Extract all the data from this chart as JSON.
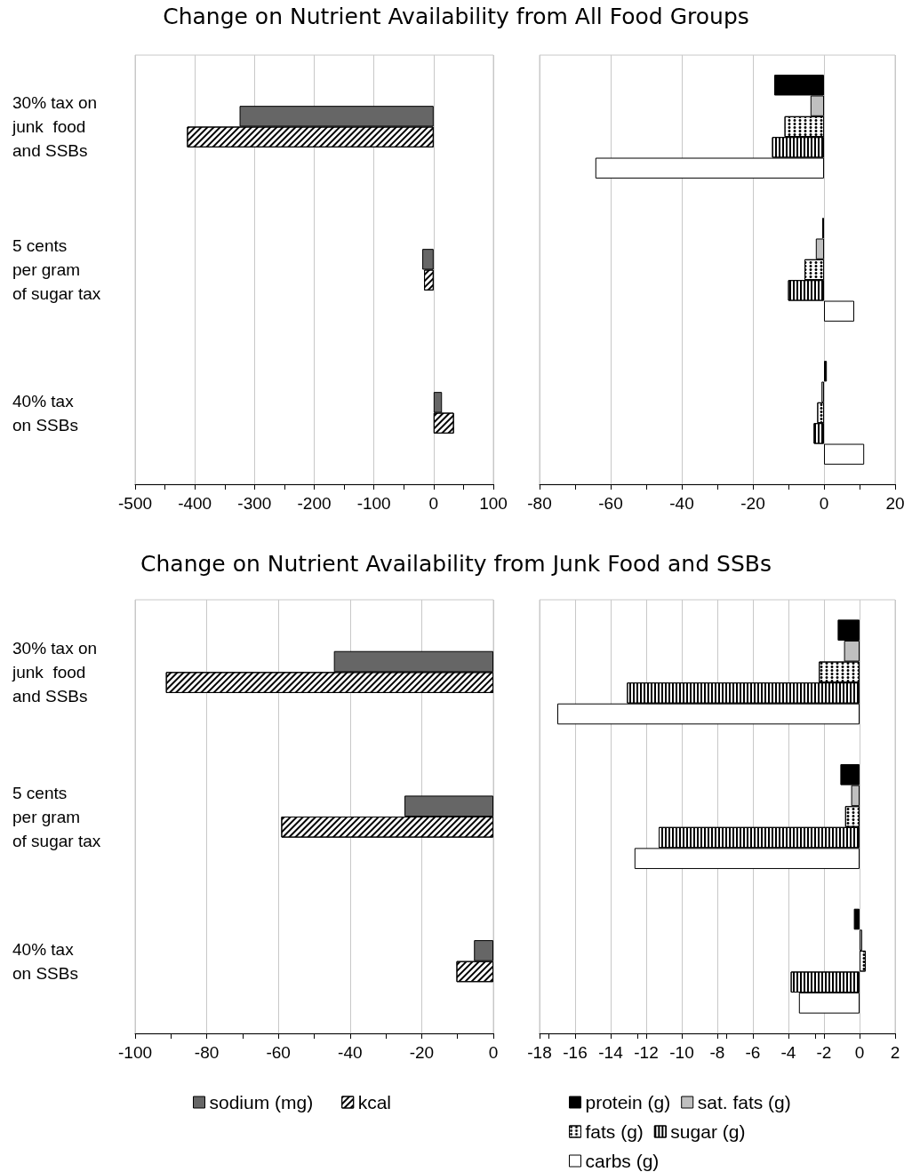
{
  "chart_data": [
    {
      "type": "bar",
      "orientation": "horizontal",
      "title": "Change on Nutrient Availability from All Food Groups",
      "categories": [
        "30% tax on\njunk  food\nand SSBs",
        "5 cents\nper gram\nof sugar tax",
        "40% tax\non SSBs"
      ],
      "series": [
        {
          "color": "#666666",
          "values": [
            -325,
            -19,
            14
          ]
        },
        {
          "color": "#ffffff",
          "values": [
            -413,
            -16,
            34
          ]
        }
      ],
      "xlim": [
        -500,
        100
      ],
      "xticks": [
        -500,
        -400,
        -300,
        -200,
        -100,
        0,
        100
      ],
      "grid": "x",
      "legend": false
    },
    {
      "type": "bar",
      "orientation": "horizontal",
      "categories": [
        null,
        null,
        null
      ],
      "series": [
        {
          "color": "#000000",
          "values": [
            -14,
            -0.5,
            0.8
          ]
        },
        {
          "color": "#bfbfbf",
          "values": [
            -3.8,
            -2.3,
            -0.7
          ]
        },
        {
          "color": "#ffffff",
          "values": [
            -11.1,
            -5.5,
            -1.9
          ]
        },
        {
          "color": "#ffffff",
          "values": [
            -14.6,
            -10.1,
            -2.9
          ]
        },
        {
          "color": "#ffffff",
          "values": [
            -64.3,
            8.5,
            11.3
          ]
        }
      ],
      "xlim": [
        -80,
        20
      ],
      "xticks": [
        -80,
        -60,
        -40,
        -20,
        0,
        20
      ],
      "grid": "x",
      "legend": false
    },
    {
      "type": "bar",
      "orientation": "horizontal",
      "title": "Change on Nutrient Availability from Junk Food and SSBs",
      "categories": [
        "30% tax on\njunk  food\nand SSBs",
        "5 cents\nper gram\nof sugar tax",
        "40% tax\non SSBs"
      ],
      "series": [
        {
          "name": "sodium (mg)",
          "color": "#666666",
          "values": [
            -44.5,
            -24.8,
            -5.4
          ]
        },
        {
          "name": "kcal",
          "color": "#ffffff",
          "values": [
            -91.4,
            -59.2,
            -10.3
          ]
        }
      ],
      "xlim": [
        -100,
        0
      ],
      "xticks": [
        -100,
        -80,
        -60,
        -40,
        -20,
        0
      ],
      "grid": "x",
      "legend": "bottom"
    },
    {
      "type": "bar",
      "orientation": "horizontal",
      "categories": [
        null,
        null,
        null
      ],
      "series": [
        {
          "name": "protein (g)",
          "color": "#000000",
          "values": [
            -1.23,
            -1.08,
            -0.32
          ]
        },
        {
          "name": "sat. fats (g)",
          "color": "#bfbfbf",
          "values": [
            -0.87,
            -0.47,
            0.15
          ]
        },
        {
          "name": "fats (g)",
          "color": "#ffffff",
          "values": [
            -2.29,
            -0.81,
            0.35
          ]
        },
        {
          "name": "sugar (g)",
          "color": "#ffffff",
          "values": [
            -13.08,
            -11.3,
            -3.87
          ]
        },
        {
          "name": "carbs (g)",
          "color": "#ffffff",
          "values": [
            -17.0,
            -12.66,
            -3.41
          ]
        }
      ],
      "xlim": [
        -18,
        2
      ],
      "xticks": [
        -18,
        -16,
        -14,
        -12,
        -10,
        -8,
        -6,
        -4,
        -2,
        0,
        2
      ],
      "grid": "x",
      "legend": "bottom"
    }
  ]
}
